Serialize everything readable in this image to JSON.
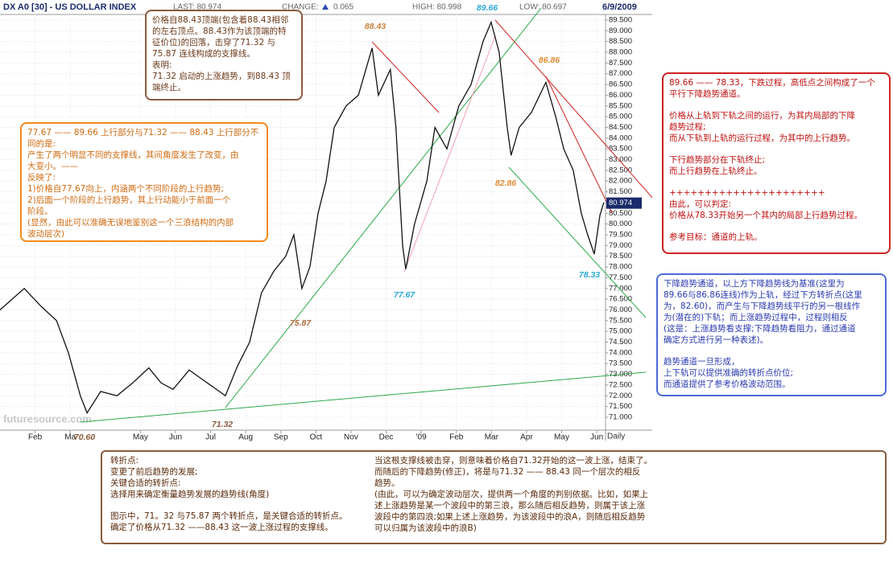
{
  "header": {
    "symbol": "DX A0 [30] - US DOLLAR INDEX",
    "last": "LAST: 80.974",
    "change_label": "CHANGE:",
    "change": "0.065",
    "high": "HIGH: 80.998",
    "low": "LOW: 80.697",
    "date": "6/9/2009",
    "watermark": "futuresource.com"
  },
  "chart_data": {
    "type": "line",
    "period": "Daily",
    "color": "#111111",
    "grid": true,
    "xlim": [
      0,
      17.25
    ],
    "ylim": [
      70.4,
      89.76
    ],
    "xticks": [
      {
        "value": 1,
        "label": "Feb"
      },
      {
        "value": 2,
        "label": "Ma"
      },
      {
        "value": 4,
        "label": "May"
      },
      {
        "value": 5,
        "label": "Jun"
      },
      {
        "value": 6,
        "label": "Jul"
      },
      {
        "value": 7,
        "label": "Aug"
      },
      {
        "value": 8,
        "label": "Sep"
      },
      {
        "value": 9,
        "label": "Oct"
      },
      {
        "value": 10,
        "label": "Nov"
      },
      {
        "value": 11,
        "label": "Dec"
      },
      {
        "value": 12,
        "label": "'09"
      },
      {
        "value": 13,
        "label": "Feb"
      },
      {
        "value": 14,
        "label": "Mar"
      },
      {
        "value": 15,
        "label": "Apr"
      },
      {
        "value": 16,
        "label": "May"
      },
      {
        "value": 17,
        "label": "Jun"
      }
    ],
    "yticks": [
      {
        "value": 71,
        "label": "71.000"
      },
      {
        "value": 71.5,
        "label": "71.500"
      },
      {
        "value": 72,
        "label": "72.000"
      },
      {
        "value": 72.5,
        "label": "72.500"
      },
      {
        "value": 73,
        "label": "73.000"
      },
      {
        "value": 73.5,
        "label": "73.500"
      },
      {
        "value": 74,
        "label": "74.000"
      },
      {
        "value": 74.5,
        "label": "74.500"
      },
      {
        "value": 75,
        "label": "75.000"
      },
      {
        "value": 75.5,
        "label": "75.500"
      },
      {
        "value": 76,
        "label": "76.000"
      },
      {
        "value": 76.5,
        "label": "76.500"
      },
      {
        "value": 77,
        "label": "77.000"
      },
      {
        "value": 77.5,
        "label": "77.500"
      },
      {
        "value": 78,
        "label": "78.000"
      },
      {
        "value": 78.5,
        "label": "78.500"
      },
      {
        "value": 79,
        "label": "79.000"
      },
      {
        "value": 79.5,
        "label": "79.500"
      },
      {
        "value": 80,
        "label": "80.000"
      },
      {
        "value": 80.5,
        "label": "80.500"
      },
      {
        "value": 81,
        "label": "81.000"
      },
      {
        "value": 81.5,
        "label": "81.500"
      },
      {
        "value": 82,
        "label": "82.000"
      },
      {
        "value": 82.5,
        "label": "82.500"
      },
      {
        "value": 83,
        "label": "83.000"
      },
      {
        "value": 83.5,
        "label": "83.500"
      },
      {
        "value": 84,
        "label": "84.000"
      },
      {
        "value": 84.5,
        "label": "84.500"
      },
      {
        "value": 85,
        "label": "85.000"
      },
      {
        "value": 85.5,
        "label": "85.500"
      },
      {
        "value": 86,
        "label": "86.000"
      },
      {
        "value": 86.5,
        "label": "86.500"
      },
      {
        "value": 87,
        "label": "87.000"
      },
      {
        "value": 87.5,
        "label": "87.500"
      },
      {
        "value": 88,
        "label": "88.000"
      },
      {
        "value": 88.5,
        "label": "88.500"
      },
      {
        "value": 89,
        "label": "89.000"
      },
      {
        "value": 89.5,
        "label": "89.500"
      }
    ],
    "x": [
      0,
      0.69,
      1.15,
      1.61,
      1.95,
      2.29,
      2.48,
      2.87,
      3.33,
      3.78,
      4.24,
      4.59,
      4.93,
      5.39,
      5.73,
      6.08,
      6.42,
      6.77,
      7.11,
      7.45,
      7.8,
      8.14,
      8.37,
      8.6,
      8.83,
      9.06,
      9.29,
      9.52,
      9.86,
      10.21,
      10.6,
      10.78,
      11.12,
      11.28,
      11.47,
      11.56,
      11.81,
      12.16,
      12.39,
      12.73,
      13.07,
      13.42,
      13.76,
      13.99,
      14.22,
      14.45,
      14.56,
      14.79,
      15.14,
      15.55,
      15.83,
      16.06,
      16.33,
      16.56,
      16.74,
      16.93,
      17.09,
      17.2
    ],
    "values": [
      76.0,
      77.0,
      76.2,
      75.5,
      74.0,
      72.0,
      71.2,
      72.2,
      72.0,
      72.6,
      73.3,
      72.6,
      72.3,
      73.2,
      72.8,
      72.4,
      72.0,
      73.4,
      74.5,
      76.8,
      77.8,
      78.5,
      79.5,
      77.0,
      78.0,
      80.5,
      82.0,
      84.5,
      85.5,
      86.0,
      88.2,
      86.0,
      87.2,
      84.5,
      79.0,
      77.9,
      80.0,
      82.0,
      84.5,
      83.5,
      85.5,
      86.5,
      88.5,
      89.4,
      88.0,
      84.5,
      83.2,
      84.5,
      85.2,
      86.6,
      85.0,
      83.5,
      82.5,
      80.5,
      79.5,
      78.6,
      80.4,
      81.0
    ],
    "last_price": 80.974,
    "annotations": [
      {
        "text": "88.43",
        "color": "#c8803a"
      },
      {
        "text": "89.66",
        "color": "#2aa8d8"
      },
      {
        "text": "86.86",
        "color": "#e08a30"
      },
      {
        "text": "82.86",
        "color": "#e08a30"
      },
      {
        "text": "78.33",
        "color": "#2aa8d8"
      },
      {
        "text": "77.67",
        "color": "#2aa8d8"
      },
      {
        "text": "75.87",
        "color": "#b06a3a"
      },
      {
        "text": "71.32",
        "color": "#8b5a3c"
      },
      {
        "text": "70.60",
        "color": "#8b5a3c"
      }
    ]
  },
  "notes": [
    {
      "paragraphs": [
        [
          "价格自88.43顶端(包含着88.43相邻",
          "的左右顶点。88.43作为该顶端的特",
          "征价位)的回落，击穿了71.32 与",
          "75.87 连线构成的支撑线。",
          "表明:",
          "71.32 启动的上涨趋势，到88.43 顶",
          "端终止。"
        ]
      ]
    },
    {
      "paragraphs": [
        [
          "77.67 —— 89.66 上行部分与71.32 —— 88.43 上行部分不",
          "同的是:",
          "产生了两个明显不同的支撑线，其间角度发生了改变，由",
          "大变小。——",
          "反映了:",
          "1)价格自77.67向上，内涵两个不同阶段的上行趋势;",
          "2)后面一个阶段的上行趋势，其上行动能小于前面一个",
          "阶段。",
          "(显然，由此可以准确无误地鉴别这一个三浪结构的内部",
          "波动层次)"
        ]
      ]
    },
    {
      "paragraphs": [
        [
          "89.66 —— 78.33，下跌过程，高低点之间构成了一个",
          "平行下降趋势通道。"
        ],
        [
          "价格从上轨到下轨之间的运行，为其内局部的下降",
          "趋势过程;",
          "而从下轨到上轨的运行过程，为其中的上行趋势。"
        ],
        [
          "下行趋势部分在下轨终止;",
          "而上行趋势在上轨终止。"
        ],
        [
          "++++++++++++++++++++++",
          "由此，可以判定:",
          "价格从78.33开始另一个其内的局部上行趋势过程。"
        ],
        [
          "参考目标：通道的上轨。"
        ]
      ]
    },
    {
      "paragraphs": [
        [
          "下降趋势通道，以上方下降趋势线为基准(这里为",
          "89.66与86.86连线)作为上轨，经过下方转折点(这里",
          "为，82.60)，而产生与下降趋势线平行的另一根线作",
          "为(潜在的)下轨；而上涨趋势过程中，过程则相反",
          "(这是：上涨趋势看支撑;下降趋势看阻力，通过通道",
          "确定方式进行另一种表述)。"
        ],
        [
          "趋势通道一旦形成，",
          "上下轨可以提供准确的转折点价位;",
          "而通道提供了参考价格波动范围。"
        ]
      ]
    },
    {
      "paragraphs": [
        [
          "转折点:",
          "变更了前后趋势的发展;",
          "关键合适的转折点:",
          "选择用来确定衡量趋势发展的趋势线(角度)"
        ],
        [
          "图示中，71。32 与75.87 两个转折点，是关键合适的转折点。",
          "确定了价格从71.32 ——88.43 这一波上涨过程的支撑线。"
        ]
      ]
    },
    {
      "paragraphs": [
        [
          "当这根支撑线被击穿，则意味着价格自71.32开始的这一波上涨，结束了。",
          "而随后的下降趋势(修正)，将是与71.32 —— 88.43 同一个层次的相反",
          "趋势。",
          "(由此，可以为确定波动层次，提供两一个角度的判别依据。比如，如果上",
          "述上涨趋势是某一个波段中的第三浪，那么随后相反趋势，则属于该上涨",
          "波段中的第四浪;如果上述上涨趋势，为该波段中的浪A，则随后相反趋势",
          "可以归属为该波段中的浪B)"
        ]
      ]
    }
  ]
}
